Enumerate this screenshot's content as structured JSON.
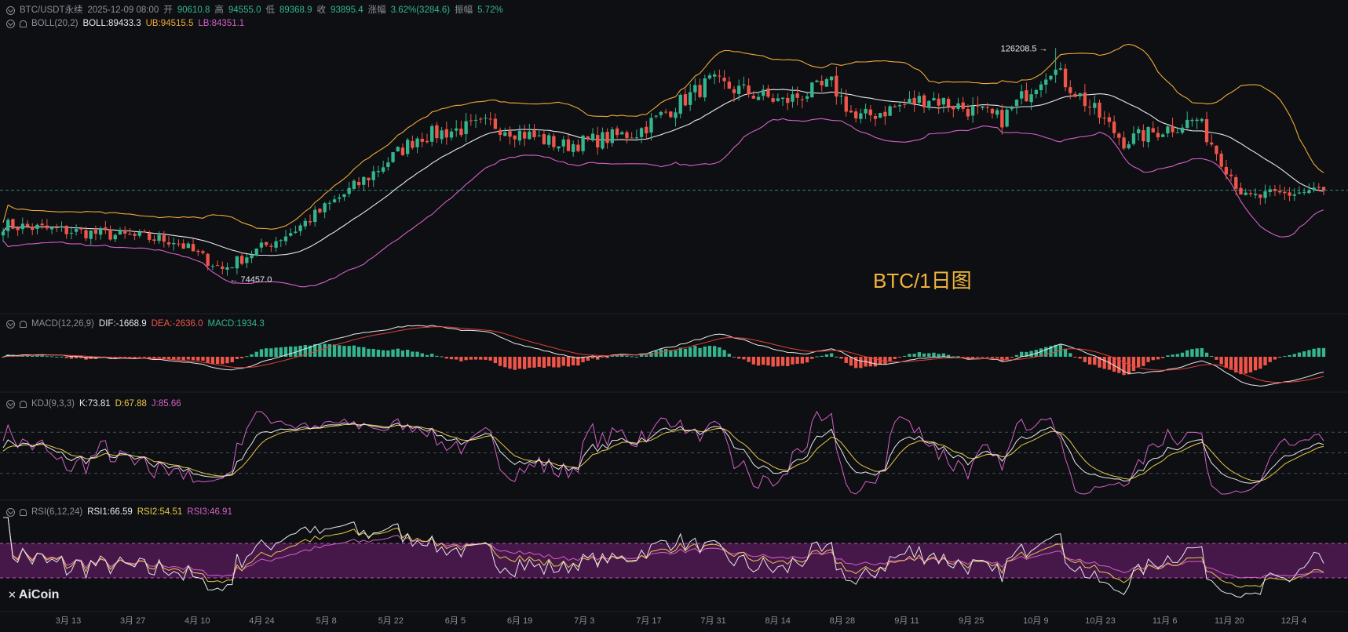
{
  "header": {
    "symbol": "BTC/USDT永续",
    "datetime": "2025-12-09 08:00",
    "open_label": "开",
    "open": "90610.8",
    "high_label": "高",
    "high": "94555.0",
    "low_label": "低",
    "low": "89368.9",
    "close_label": "收",
    "close": "93895.4",
    "change_label": "涨幅",
    "change": "3.62%(3284.6)",
    "amp_label": "振幅",
    "amp": "5.72%"
  },
  "indicators": {
    "boll": {
      "name": "BOLL(20,2)",
      "mid": "BOLL:89433.3",
      "ub": "UB:94515.5",
      "lb": "LB:84351.1"
    },
    "macd": {
      "name": "MACD(12,26,9)",
      "dif": "DIF:-1668.9",
      "dea": "DEA:-2636.0",
      "macd": "MACD:1934.3"
    },
    "kdj": {
      "name": "KDJ(9,3,3)",
      "k": "K:73.81",
      "d": "D:67.88",
      "j": "J:85.66"
    },
    "rsi": {
      "name": "RSI(6,12,24)",
      "rsi1": "RSI1:66.59",
      "rsi2": "RSI2:54.51",
      "rsi3": "RSI3:46.91"
    }
  },
  "annotations": {
    "high_marker": "126208.5",
    "low_marker": "74457.0",
    "chart_title": "BTC/1日图"
  },
  "logo": "AiCoin",
  "colors": {
    "up": "#35b58d",
    "down": "#f0554a",
    "boll_mid": "#e6e8ec",
    "boll_ub": "#f0a93b",
    "boll_lb": "#d65fc8",
    "k": "#e6e8ec",
    "d": "#e9c84a",
    "j": "#d65fc8",
    "rsi_band": "#5a1c5e"
  },
  "chart_data": {
    "type": "candlestick",
    "x_ticks": [
      "3月 13",
      "3月 27",
      "4月 10",
      "4月 24",
      "5月 8",
      "5月 22",
      "6月 5",
      "6月 19",
      "7月 3",
      "7月 17",
      "7月 31",
      "8月 14",
      "8月 28",
      "9月 11",
      "9月 25",
      "10月 9",
      "10月 23",
      "11月 6",
      "11月 20",
      "12月 4"
    ],
    "anchors_index": [
      0,
      20,
      35,
      45,
      60,
      75,
      85,
      100,
      115,
      130,
      145,
      160,
      170,
      175,
      190,
      205,
      215,
      230,
      245,
      255,
      270
    ],
    "anchors_close": [
      86000,
      84000,
      82500,
      76000,
      85000,
      97000,
      106000,
      109000,
      104000,
      107000,
      118500,
      114000,
      118000,
      110000,
      115000,
      110000,
      122000,
      105000,
      110000,
      92000,
      93895
    ],
    "high_marker_value": 126208.5,
    "low_marker_value": 74457.0,
    "last_close": 93895.4,
    "kdj_ref_levels": [
      80,
      50,
      20
    ],
    "rsi_band": [
      30,
      70
    ]
  }
}
